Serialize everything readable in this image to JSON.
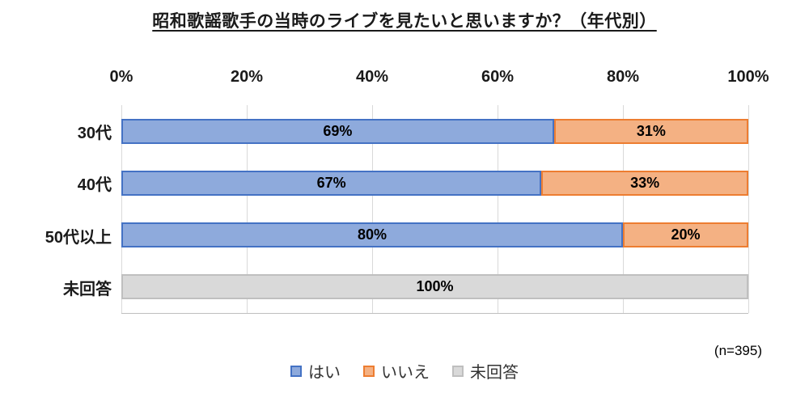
{
  "chart_data": {
    "type": "bar",
    "orientation": "horizontal",
    "stacked": true,
    "title": "昭和歌謡歌手の当時のライブを見たいと思いますか？（年代別）",
    "categories": [
      "30代",
      "40代",
      "50代以上",
      "未回答"
    ],
    "series": [
      {
        "name": "はい",
        "color": "#8EAADC",
        "border": "#4472C4",
        "values": [
          69,
          67,
          80,
          0
        ]
      },
      {
        "name": "いいえ",
        "color": "#F4B183",
        "border": "#ED7D31",
        "values": [
          31,
          33,
          20,
          0
        ]
      },
      {
        "name": "未回答",
        "color": "#D9D9D9",
        "border": "#BFBFBF",
        "values": [
          0,
          0,
          0,
          100
        ]
      }
    ],
    "x_ticks": [
      "0%",
      "20%",
      "40%",
      "60%",
      "80%",
      "100%"
    ],
    "xlim": [
      0,
      100
    ],
    "value_suffix": "%",
    "grid": true,
    "legend_position": "bottom",
    "note": "(n=395)"
  }
}
